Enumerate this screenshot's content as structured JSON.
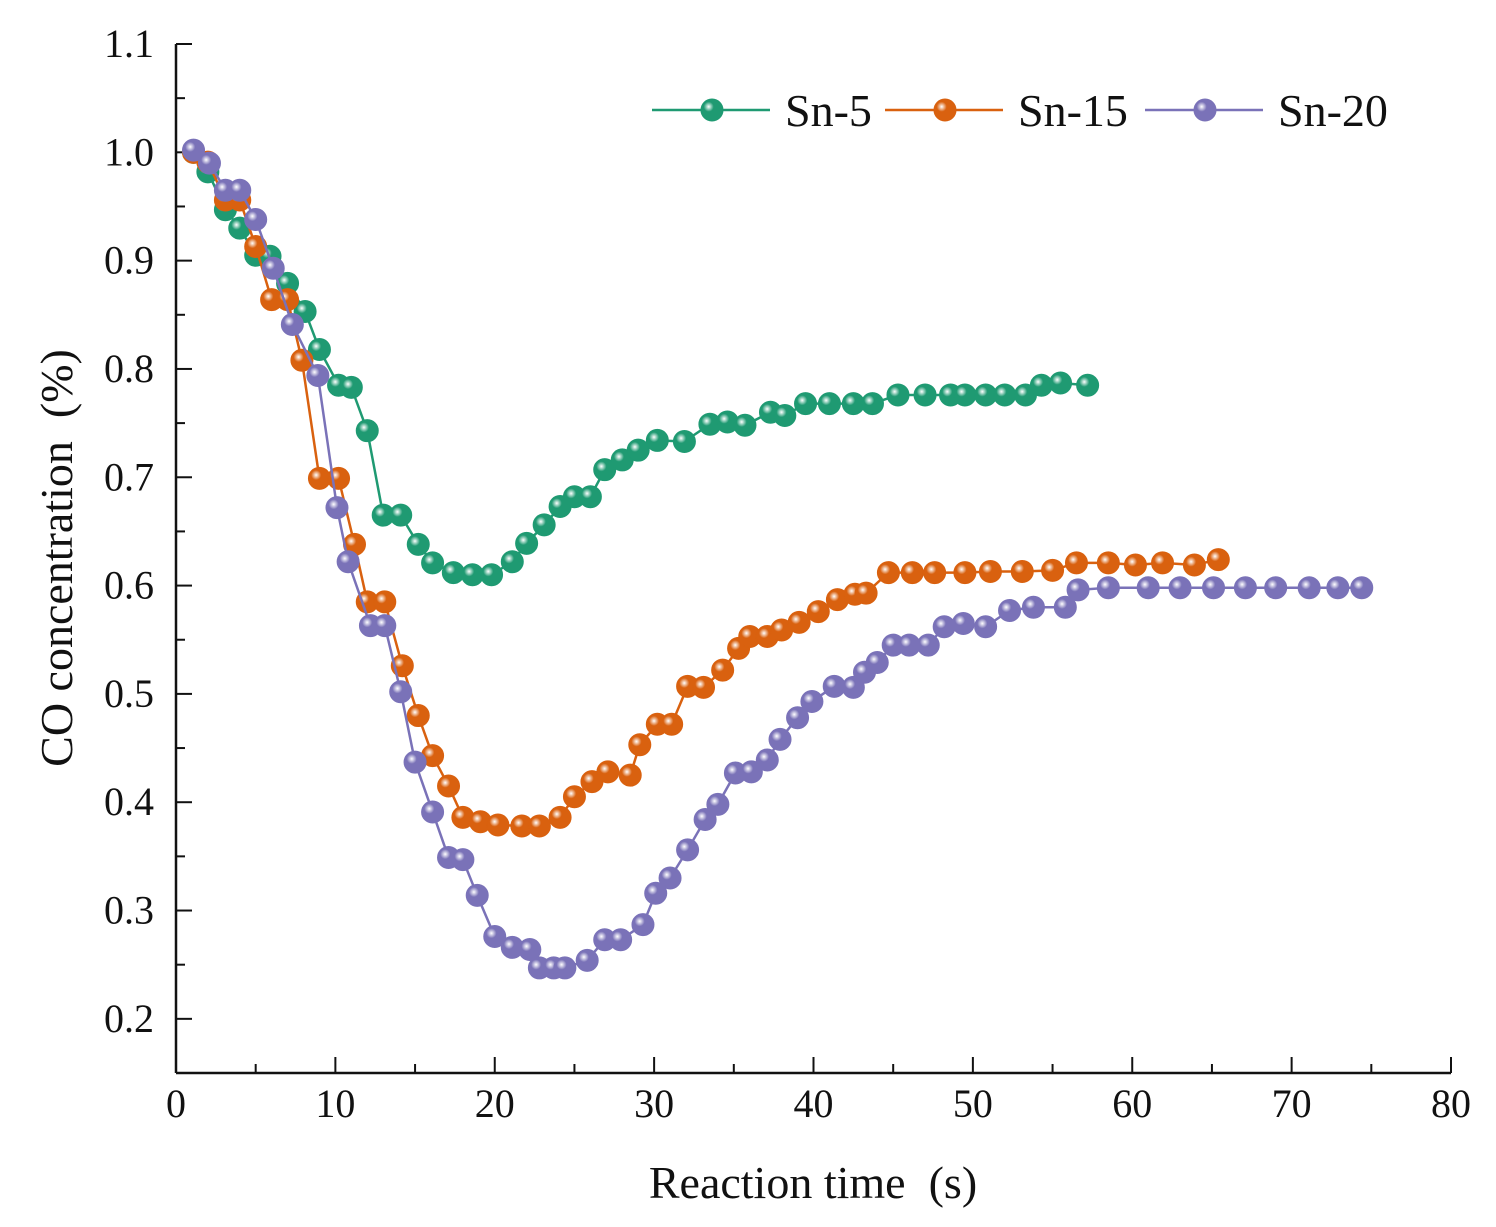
{
  "chart_data": {
    "type": "line",
    "title": "",
    "xlabel": "Reaction time  (s)",
    "ylabel": "CO concentration  (%)",
    "xlim": [
      0,
      80
    ],
    "ylim": [
      0.15,
      1.1
    ],
    "xticks": [
      0,
      10,
      20,
      30,
      40,
      50,
      60,
      70,
      80
    ],
    "xtick_labels": [
      "0",
      "10",
      "20",
      "30",
      "40",
      "50",
      "60",
      "70",
      "80"
    ],
    "yticks": [
      0.2,
      0.3,
      0.4,
      0.5,
      0.6,
      0.7,
      0.8,
      0.9,
      1.0,
      1.1
    ],
    "ytick_labels": [
      "0.2",
      "0.3",
      "0.4",
      "0.5",
      "0.6",
      "0.7",
      "0.8",
      "0.9",
      "1.0",
      "1.1"
    ],
    "grid": false,
    "legend_position": "top-right",
    "series": [
      {
        "name": "Sn-5",
        "color": "#1f9a72",
        "x": [
          1.1,
          2.0,
          3.1,
          4.0,
          5.0,
          5.9,
          7.0,
          8.1,
          9.0,
          10.2,
          11.0,
          12.0,
          13.0,
          14.1,
          15.2,
          16.1,
          17.4,
          18.6,
          19.8,
          21.1,
          22.0,
          23.1,
          24.1,
          25.0,
          26.0,
          26.9,
          28.0,
          29.0,
          30.2,
          31.9,
          33.5,
          34.6,
          35.7,
          37.3,
          38.2,
          39.5,
          41.0,
          42.5,
          43.7,
          45.3,
          47.0,
          48.6,
          49.5,
          50.8,
          52.0,
          53.3,
          54.3,
          55.5,
          57.2
        ],
        "y": [
          1.0,
          0.982,
          0.947,
          0.93,
          0.905,
          0.904,
          0.879,
          0.853,
          0.818,
          0.785,
          0.783,
          0.743,
          0.665,
          0.665,
          0.638,
          0.621,
          0.612,
          0.61,
          0.61,
          0.622,
          0.639,
          0.656,
          0.673,
          0.682,
          0.682,
          0.707,
          0.716,
          0.725,
          0.734,
          0.733,
          0.749,
          0.751,
          0.748,
          0.76,
          0.757,
          0.768,
          0.768,
          0.768,
          0.768,
          0.776,
          0.776,
          0.776,
          0.776,
          0.776,
          0.776,
          0.776,
          0.785,
          0.787,
          0.785
        ]
      },
      {
        "name": "Sn-15",
        "color": "#d9610f",
        "x": [
          1.1,
          2.0,
          3.1,
          4.0,
          5.0,
          6.0,
          7.0,
          7.9,
          9.0,
          10.2,
          11.2,
          12.0,
          13.1,
          14.2,
          15.2,
          16.1,
          17.1,
          18.0,
          19.1,
          20.2,
          21.7,
          22.8,
          24.1,
          25.0,
          26.1,
          27.1,
          28.5,
          29.1,
          30.2,
          31.1,
          32.1,
          33.1,
          34.3,
          35.3,
          36.0,
          37.1,
          38.0,
          39.1,
          40.3,
          41.5,
          42.6,
          43.3,
          44.7,
          46.2,
          47.6,
          49.5,
          51.1,
          53.1,
          55.0,
          56.5,
          58.5,
          60.2,
          61.9,
          63.9,
          65.4
        ],
        "y": [
          1.0,
          0.991,
          0.956,
          0.956,
          0.913,
          0.864,
          0.864,
          0.808,
          0.699,
          0.699,
          0.638,
          0.585,
          0.585,
          0.526,
          0.48,
          0.443,
          0.415,
          0.386,
          0.382,
          0.379,
          0.378,
          0.378,
          0.386,
          0.405,
          0.419,
          0.428,
          0.425,
          0.453,
          0.472,
          0.472,
          0.507,
          0.506,
          0.522,
          0.542,
          0.553,
          0.553,
          0.559,
          0.566,
          0.576,
          0.587,
          0.592,
          0.593,
          0.612,
          0.612,
          0.612,
          0.612,
          0.613,
          0.613,
          0.614,
          0.621,
          0.621,
          0.619,
          0.621,
          0.619,
          0.624
        ]
      },
      {
        "name": "Sn-20",
        "color": "#7a72b8",
        "x": [
          1.1,
          2.1,
          3.1,
          4.0,
          5.0,
          6.1,
          7.3,
          8.9,
          10.1,
          10.8,
          12.2,
          13.1,
          14.1,
          15.0,
          16.1,
          17.1,
          18.0,
          18.9,
          20.0,
          21.1,
          22.2,
          22.8,
          23.7,
          24.4,
          25.8,
          26.9,
          27.9,
          29.3,
          30.1,
          31.0,
          32.1,
          33.2,
          34.0,
          35.1,
          36.1,
          37.1,
          37.9,
          39.0,
          39.9,
          41.3,
          42.5,
          43.2,
          44.0,
          45.0,
          46.0,
          47.2,
          48.2,
          49.4,
          50.8,
          52.3,
          53.8,
          55.8,
          56.6,
          58.5,
          61.0,
          63.0,
          65.1,
          67.1,
          69.0,
          71.1,
          72.9,
          74.4
        ],
        "y": [
          1.002,
          0.99,
          0.965,
          0.965,
          0.938,
          0.893,
          0.841,
          0.794,
          0.672,
          0.622,
          0.563,
          0.563,
          0.502,
          0.437,
          0.391,
          0.349,
          0.347,
          0.314,
          0.276,
          0.266,
          0.264,
          0.247,
          0.247,
          0.247,
          0.254,
          0.273,
          0.273,
          0.287,
          0.316,
          0.33,
          0.356,
          0.384,
          0.398,
          0.427,
          0.428,
          0.439,
          0.458,
          0.478,
          0.493,
          0.507,
          0.506,
          0.52,
          0.529,
          0.545,
          0.545,
          0.545,
          0.562,
          0.565,
          0.562,
          0.577,
          0.58,
          0.58,
          0.596,
          0.598,
          0.598,
          0.598,
          0.598,
          0.598,
          0.598,
          0.598,
          0.598,
          0.598
        ]
      }
    ]
  }
}
